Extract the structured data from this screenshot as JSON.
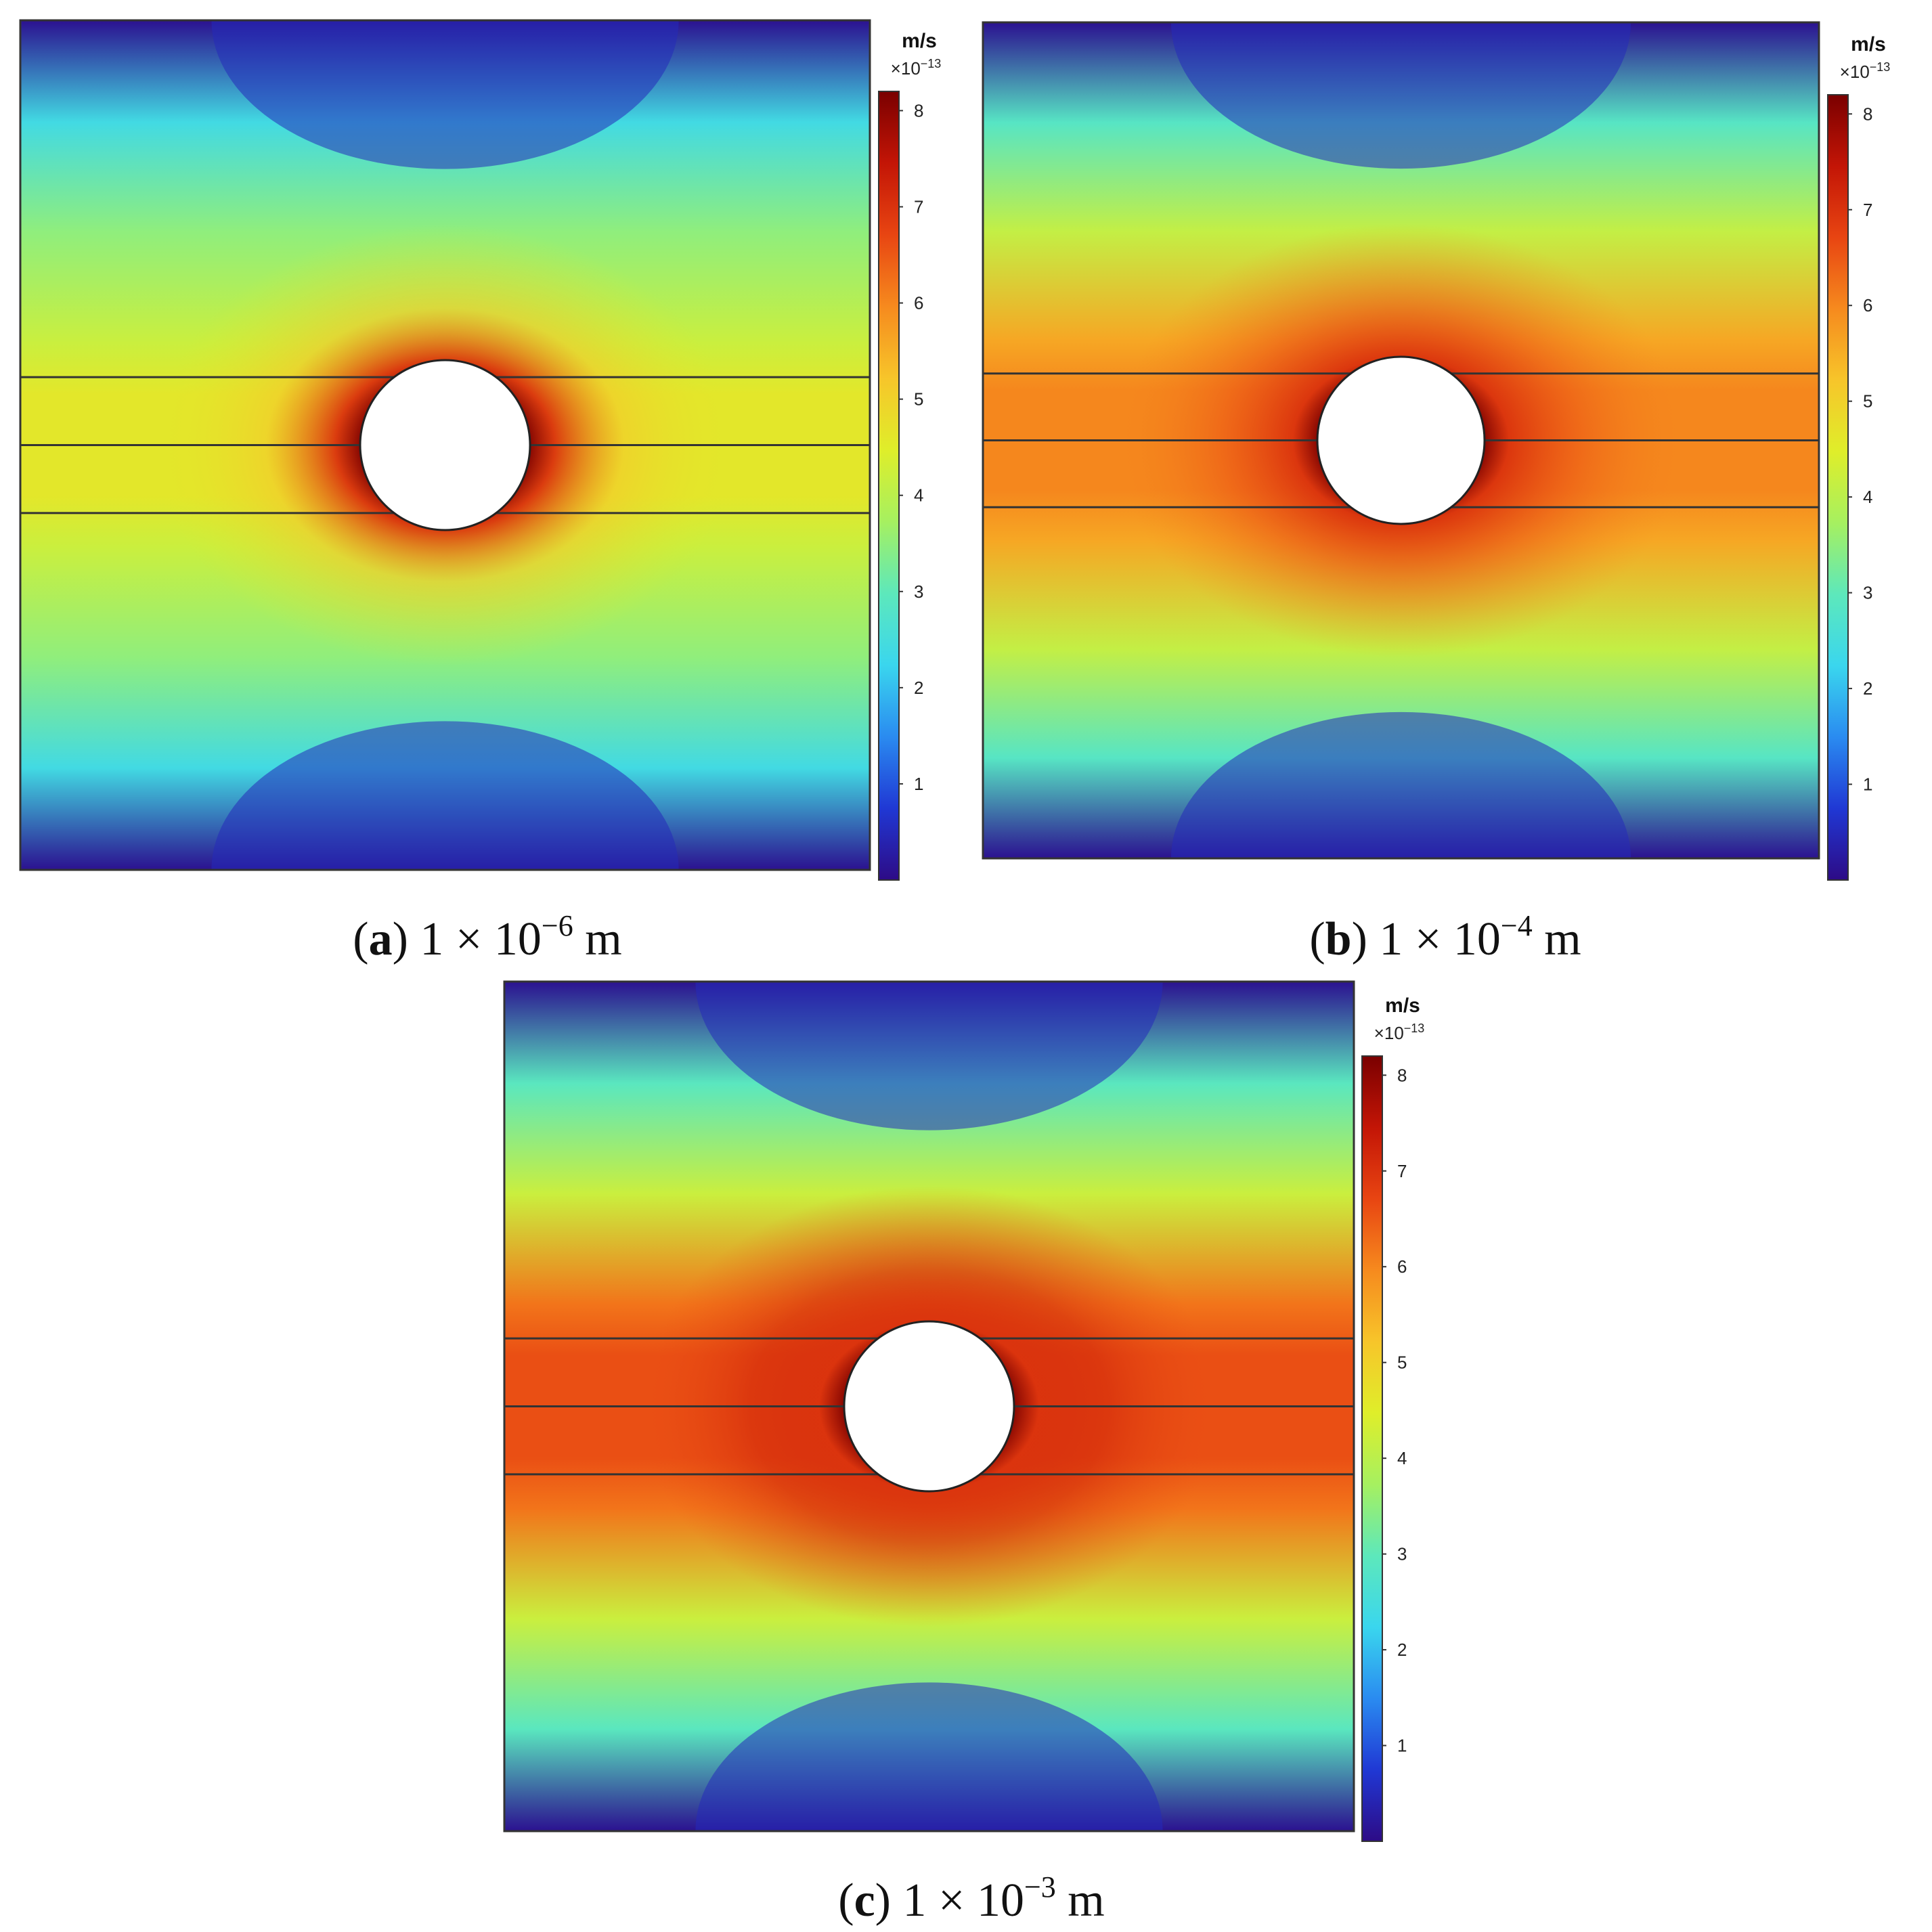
{
  "figure": {
    "panels": [
      {
        "id": "a",
        "letter": "a",
        "caption_rest": " 1 × 10",
        "exp": "−6",
        "caption_unit": " m"
      },
      {
        "id": "b",
        "letter": "b",
        "caption_rest": " 1 × 10",
        "exp": "−4",
        "caption_unit": " m"
      },
      {
        "id": "c",
        "letter": "c",
        "caption_rest": " 1 × 10",
        "exp": "−3",
        "caption_unit": " m"
      }
    ],
    "colorbar": {
      "unit": "m/s",
      "scale_base": "×10",
      "scale_exp": "−13",
      "ticks": [
        "1",
        "2",
        "3",
        "4",
        "5",
        "6",
        "7",
        "8"
      ]
    },
    "colors": {
      "ramp": [
        "#2d0b86",
        "#2038d4",
        "#2a8bf0",
        "#3ad6ee",
        "#5de8bb",
        "#a6f060",
        "#dfee2a",
        "#f7c52a",
        "#f68a1e",
        "#e84512",
        "#c31506",
        "#7a0000"
      ]
    }
  },
  "chart_data": [
    {
      "type": "heatmap",
      "panel": "a",
      "title": "(a) 1 × 10−6 m",
      "colorbar_label": "m/s ×10−13",
      "colorbar_range": [
        0,
        8.2
      ],
      "layer_band_value": 4.6,
      "ring_max_value": 8.2,
      "far_field_value": 3.2,
      "top_bottom_min_value": 0.1
    },
    {
      "type": "heatmap",
      "panel": "b",
      "title": "(b) 1 × 10−4 m",
      "colorbar_label": "m/s ×10−13",
      "colorbar_range": [
        0,
        8.2
      ],
      "layer_band_value": 6.0,
      "ring_max_value": 8.2,
      "far_field_value": 3.8,
      "top_bottom_min_value": 0.1
    },
    {
      "type": "heatmap",
      "panel": "c",
      "title": "(c) 1 × 10−3 m",
      "colorbar_label": "m/s ×10−13",
      "colorbar_range": [
        0,
        8.2
      ],
      "layer_band_value": 6.6,
      "ring_max_value": 8.2,
      "far_field_value": 3.9,
      "top_bottom_min_value": 0.1
    }
  ]
}
